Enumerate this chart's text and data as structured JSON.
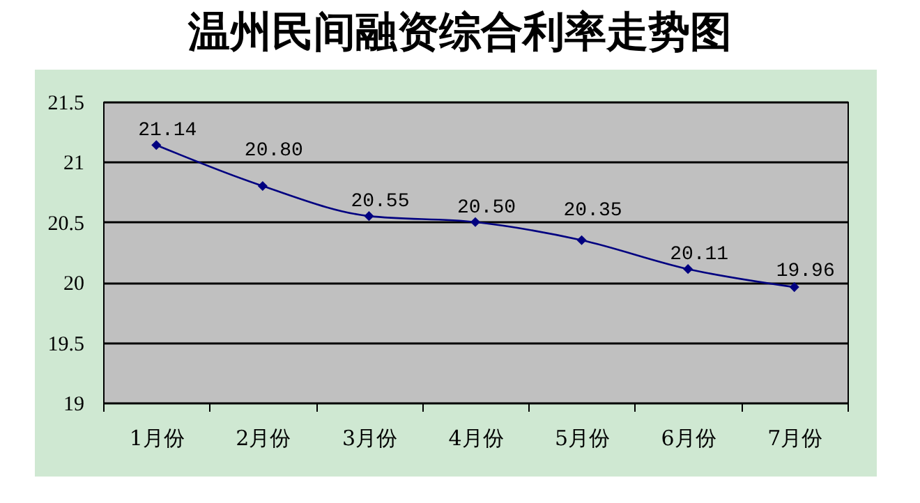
{
  "chart_data": {
    "type": "line",
    "title": "温州民间融资综合利率走势图",
    "categories": [
      "1月份",
      "2月份",
      "3月份",
      "4月份",
      "5月份",
      "6月份",
      "7月份"
    ],
    "series": [
      {
        "color": "#000080",
        "values": [
          21.14,
          20.8,
          20.55,
          20.5,
          20.35,
          20.11,
          19.96
        ],
        "value_labels": [
          "21.14",
          "20.80",
          "20.55",
          "20.50",
          "20.35",
          "20.11",
          "19.96"
        ]
      }
    ],
    "ylim": [
      19,
      21.5
    ],
    "yticks": [
      19,
      19.5,
      20,
      20.5,
      21,
      21.5
    ],
    "grid": "y",
    "marker": "diamond"
  }
}
